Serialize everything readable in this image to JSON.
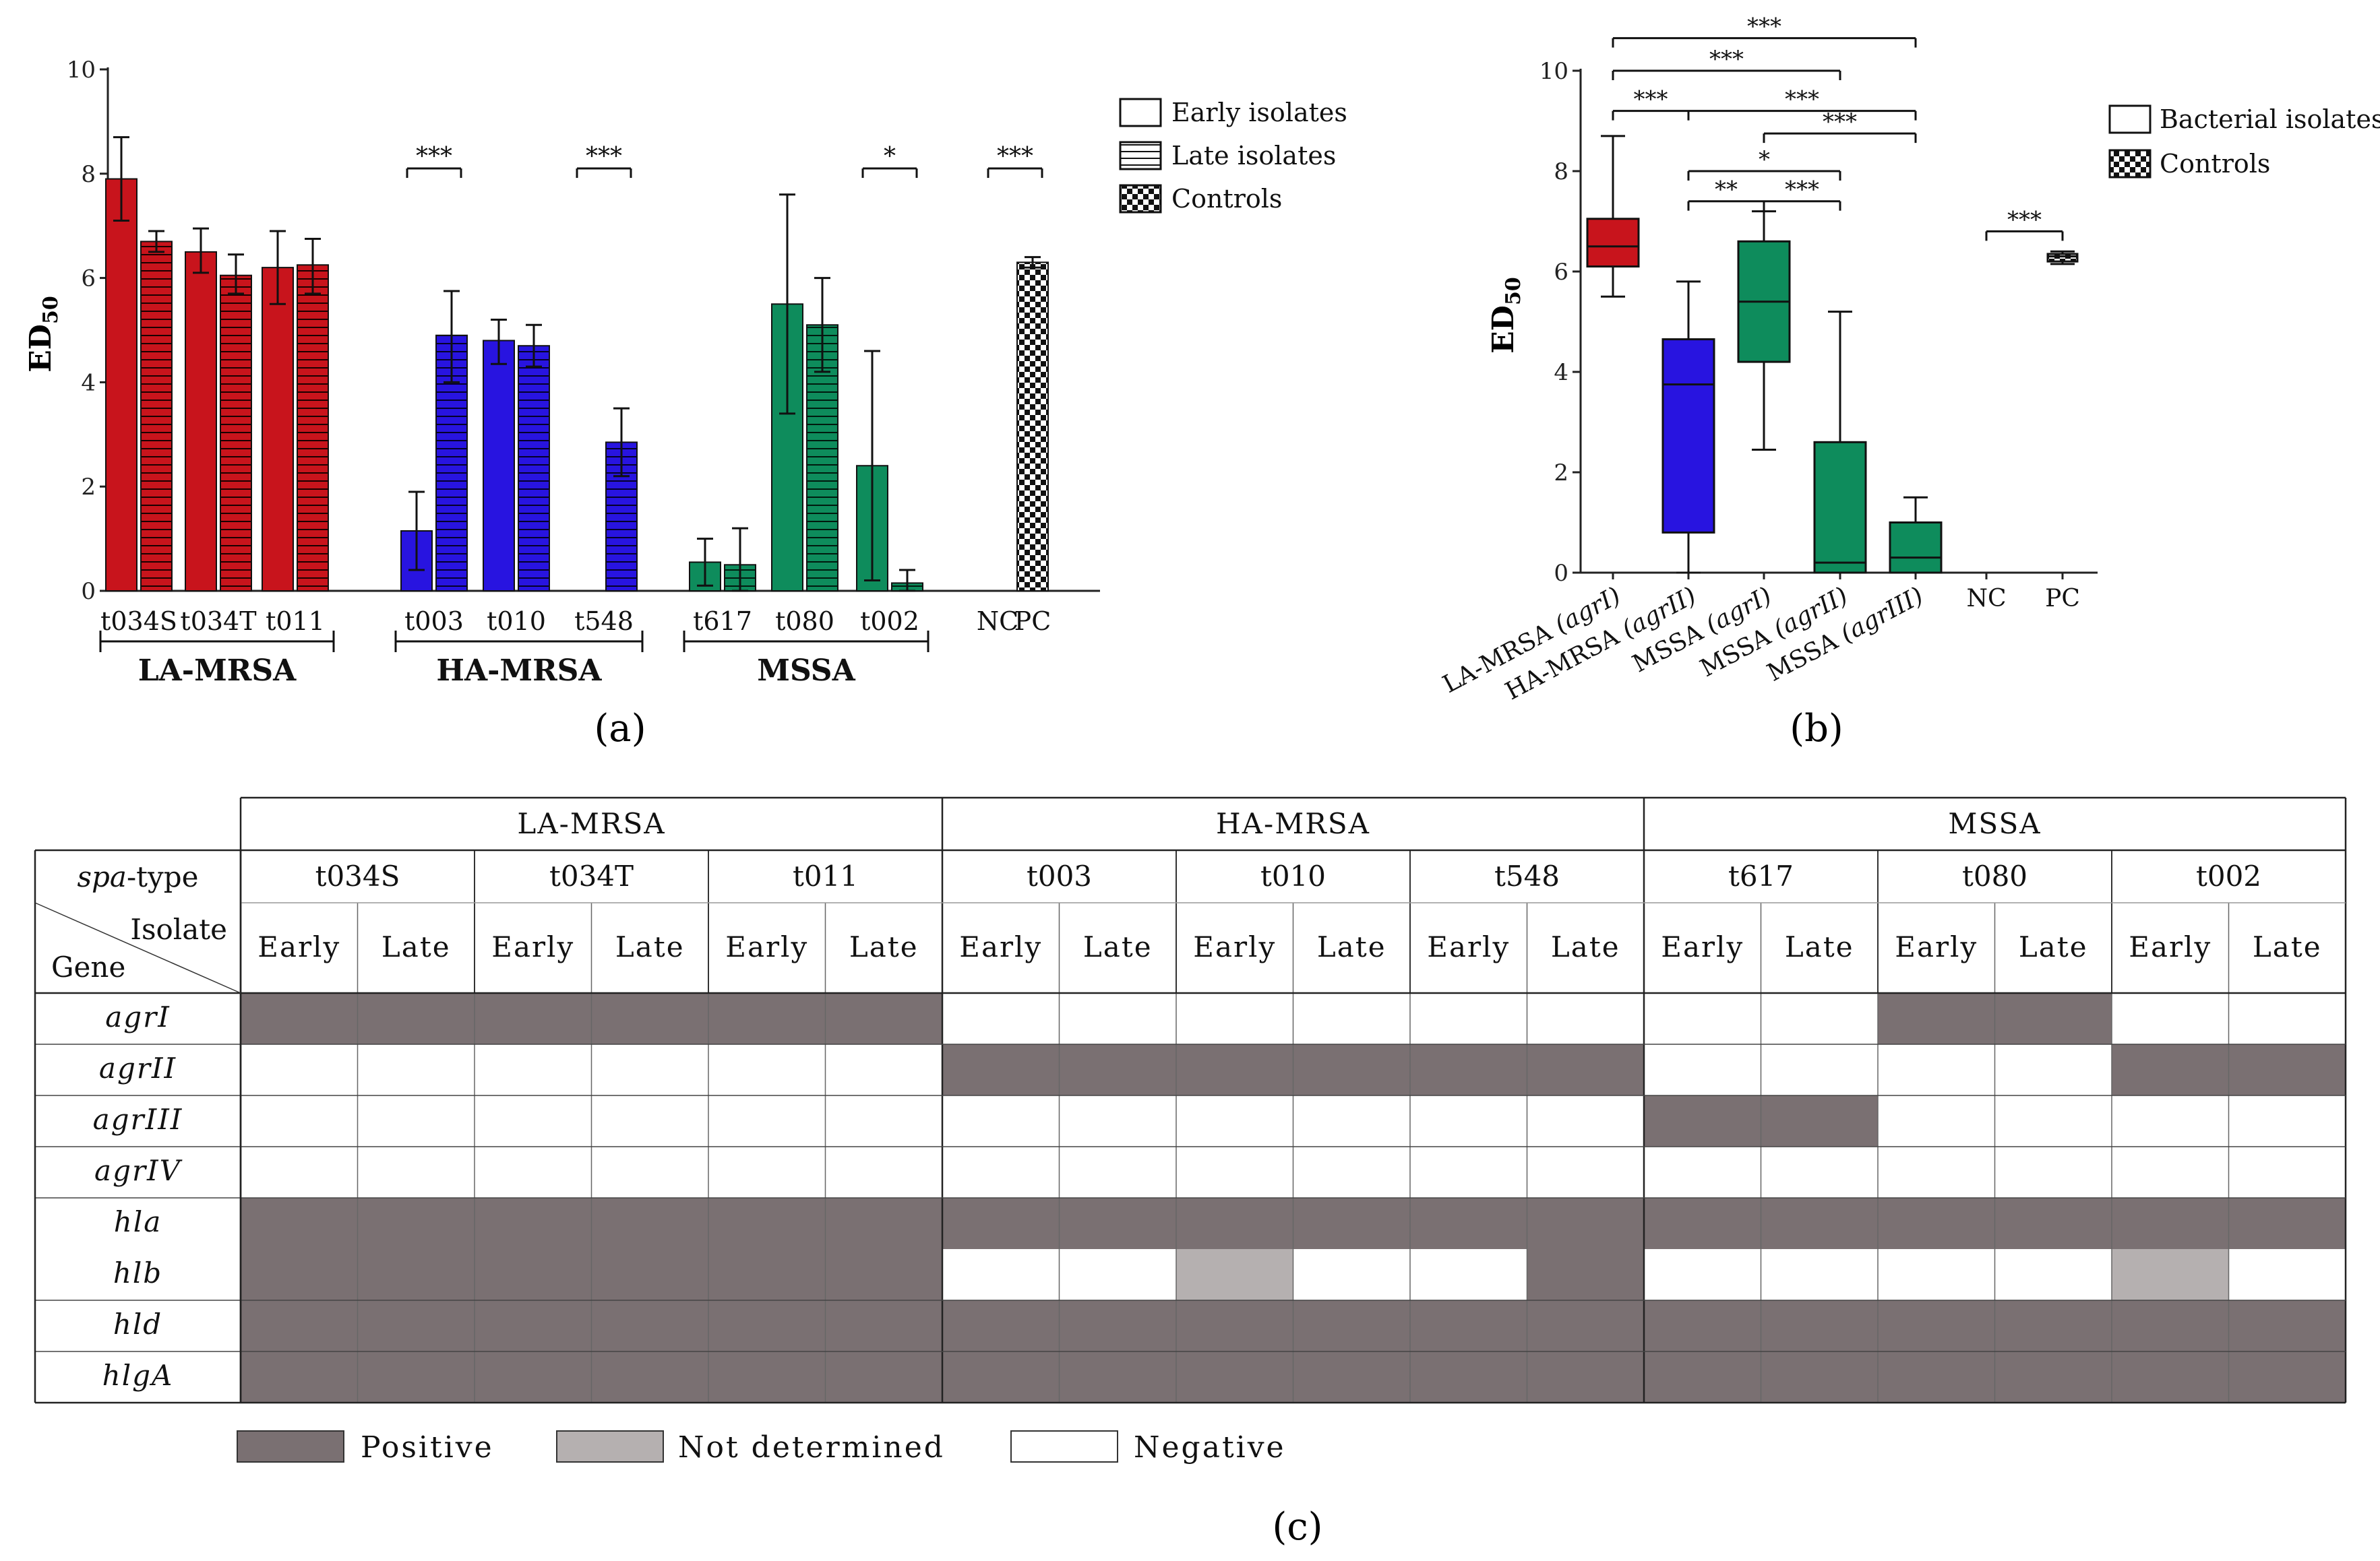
{
  "panels": {
    "a": "(a)",
    "b": "(b)",
    "c": "(c)"
  },
  "colors": {
    "la": "#c8141c",
    "ha": "#2814e0",
    "mssa": "#0e8c5c",
    "positive": "#7a7072",
    "not_determined": "#b5b0b0",
    "negative": "#ffffff"
  },
  "chart_data": [
    {
      "type": "bar",
      "panel": "(a)",
      "ylabel": "ED",
      "ylabel_sub": "50",
      "ylim": [
        0,
        10
      ],
      "yticks": [
        0,
        2,
        4,
        6,
        8,
        10
      ],
      "legend": [
        "Early isolates",
        "Late isolates",
        "Controls"
      ],
      "group_labels": [
        "LA-MRSA",
        "HA-MRSA",
        "MSSA"
      ],
      "bars": [
        {
          "group": "LA-MRSA",
          "spa": "t034S",
          "stage": "Early",
          "value": 7.9,
          "err_low": 7.1,
          "err_high": 8.7
        },
        {
          "group": "LA-MRSA",
          "spa": "t034S",
          "stage": "Late",
          "value": 6.7,
          "err_low": 6.5,
          "err_high": 6.9
        },
        {
          "group": "LA-MRSA",
          "spa": "t034T",
          "stage": "Early",
          "value": 6.5,
          "err_low": 6.1,
          "err_high": 6.95
        },
        {
          "group": "LA-MRSA",
          "spa": "t034T",
          "stage": "Late",
          "value": 6.05,
          "err_low": 5.7,
          "err_high": 6.45
        },
        {
          "group": "LA-MRSA",
          "spa": "t011",
          "stage": "Early",
          "value": 6.2,
          "err_low": 5.5,
          "err_high": 6.9
        },
        {
          "group": "LA-MRSA",
          "spa": "t011",
          "stage": "Late",
          "value": 6.25,
          "err_low": 5.7,
          "err_high": 6.75
        },
        {
          "group": "HA-MRSA",
          "spa": "t003",
          "stage": "Early",
          "value": 1.15,
          "err_low": 0.4,
          "err_high": 1.9
        },
        {
          "group": "HA-MRSA",
          "spa": "t003",
          "stage": "Late",
          "value": 4.9,
          "err_low": 4.0,
          "err_high": 5.75
        },
        {
          "group": "HA-MRSA",
          "spa": "t010",
          "stage": "Early",
          "value": 4.8,
          "err_low": 4.35,
          "err_high": 5.2
        },
        {
          "group": "HA-MRSA",
          "spa": "t010",
          "stage": "Late",
          "value": 4.7,
          "err_low": 4.3,
          "err_high": 5.1
        },
        {
          "group": "HA-MRSA",
          "spa": "t548",
          "stage": "Early",
          "value": 0.0,
          "err_low": 0.0,
          "err_high": 0.0
        },
        {
          "group": "HA-MRSA",
          "spa": "t548",
          "stage": "Late",
          "value": 2.85,
          "err_low": 2.2,
          "err_high": 3.5
        },
        {
          "group": "MSSA",
          "spa": "t617",
          "stage": "Early",
          "value": 0.55,
          "err_low": 0.1,
          "err_high": 1.0
        },
        {
          "group": "MSSA",
          "spa": "t617",
          "stage": "Late",
          "value": 0.5,
          "err_low": 0.0,
          "err_high": 1.2
        },
        {
          "group": "MSSA",
          "spa": "t080",
          "stage": "Early",
          "value": 5.5,
          "err_low": 3.4,
          "err_high": 7.6
        },
        {
          "group": "MSSA",
          "spa": "t080",
          "stage": "Late",
          "value": 5.1,
          "err_low": 4.2,
          "err_high": 6.0
        },
        {
          "group": "MSSA",
          "spa": "t002",
          "stage": "Early",
          "value": 2.4,
          "err_low": 0.2,
          "err_high": 4.6
        },
        {
          "group": "MSSA",
          "spa": "t002",
          "stage": "Late",
          "value": 0.15,
          "err_low": 0.0,
          "err_high": 0.4
        },
        {
          "group": "Controls",
          "spa": "NC",
          "stage": "Control",
          "value": 0.0,
          "err_low": 0.0,
          "err_high": 0.0
        },
        {
          "group": "Controls",
          "spa": "PC",
          "stage": "Control",
          "value": 6.3,
          "err_low": 6.2,
          "err_high": 6.4
        }
      ],
      "tick_labels": [
        {
          "label": "t034S",
          "pair": 0
        },
        {
          "label": "t034T",
          "pair": 1
        },
        {
          "label": "t011",
          "pair": 2
        },
        {
          "label": "t003",
          "pair": 3
        },
        {
          "label": "t010",
          "pair": 4
        },
        {
          "label": "t548",
          "pair": 5
        },
        {
          "label": "t617",
          "pair": 6
        },
        {
          "label": "t080",
          "pair": 7
        },
        {
          "label": "t002",
          "pair": 8
        },
        {
          "label": "NC",
          "bar": 18
        },
        {
          "label": "PC",
          "bar": 19
        }
      ],
      "significance": [
        {
          "label": "***",
          "from_bar": 6,
          "to_bar": 7
        },
        {
          "label": "***",
          "from_bar": 10,
          "to_bar": 11
        },
        {
          "label": "*",
          "from_bar": 16,
          "to_bar": 17
        },
        {
          "label": "***",
          "from_bar": 18,
          "to_bar": 19
        }
      ]
    },
    {
      "type": "box",
      "panel": "(b)",
      "ylabel": "ED",
      "ylabel_sub": "50",
      "ylim": [
        0,
        10
      ],
      "yticks": [
        0,
        2,
        4,
        6,
        8,
        10
      ],
      "legend": [
        "Bacterial isolates",
        "Controls"
      ],
      "categories": [
        {
          "name": "LA-MRSA",
          "agr": "(agrI)",
          "min": 5.5,
          "q1": 6.1,
          "median": 6.5,
          "q3": 7.05,
          "max": 8.7
        },
        {
          "name": "HA-MRSA",
          "agr": "(agrII)",
          "min": 0.0,
          "q1": 0.8,
          "median": 3.75,
          "q3": 4.65,
          "max": 5.8
        },
        {
          "name": "MSSA",
          "agr": "(agrI)",
          "min": 2.45,
          "q1": 4.2,
          "median": 5.4,
          "q3": 6.6,
          "max": 7.2
        },
        {
          "name": "MSSA",
          "agr": "(agrII)",
          "min": 0.0,
          "q1": 0.0,
          "median": 0.2,
          "q3": 2.6,
          "max": 5.2
        },
        {
          "name": "MSSA",
          "agr": "(agrIII)",
          "min": 0.0,
          "q1": 0.0,
          "median": 0.3,
          "q3": 1.0,
          "max": 1.5
        },
        {
          "name": "NC",
          "agr": "",
          "min": 0,
          "q1": 0,
          "median": 0,
          "q3": 0,
          "max": 0
        },
        {
          "name": "PC",
          "agr": "",
          "min": 6.15,
          "q1": 6.2,
          "median": 6.3,
          "q3": 6.35,
          "max": 6.4
        }
      ],
      "significance": [
        {
          "label": "***",
          "from": 0,
          "to": 4,
          "level": 10.65
        },
        {
          "label": "***",
          "from": 0,
          "to": 3,
          "level": 10.0
        },
        {
          "label": "***",
          "from": 0,
          "to": 1,
          "level": 9.2
        },
        {
          "label": "***",
          "from": 1,
          "to": 4,
          "level": 9.2
        },
        {
          "label": "***",
          "from": 2,
          "to": 4,
          "level": 8.75
        },
        {
          "label": "*",
          "from": 1,
          "to": 3,
          "level": 8.0
        },
        {
          "label": "**",
          "from": 1,
          "to": 2,
          "level": 7.4
        },
        {
          "label": "***",
          "from": 2,
          "to": 3,
          "level": 7.4
        },
        {
          "label": "***",
          "from": 5,
          "to": 6,
          "level": 6.8
        }
      ]
    },
    {
      "type": "table",
      "panel": "(c)",
      "groups": [
        "LA-MRSA",
        "HA-MRSA",
        "MSSA"
      ],
      "spa_header": "spa",
      "spa_header_suffix": "-type",
      "corner_top": "Isolate",
      "corner_bottom": "Gene",
      "spa_types": [
        "t034S",
        "t034T",
        "t011",
        "t003",
        "t010",
        "t548",
        "t617",
        "t080",
        "t002"
      ],
      "stages": [
        "Early",
        "Late"
      ],
      "genes": [
        "agrI",
        "agrII",
        "agrIII",
        "agrIV",
        "hla",
        "hlb",
        "hld",
        "hlgA"
      ],
      "matrix": [
        [
          "P",
          "P",
          "P",
          "P",
          "P",
          "P",
          "N",
          "N",
          "N",
          "N",
          "N",
          "N",
          "N",
          "N",
          "P",
          "P",
          "N",
          "N"
        ],
        [
          "N",
          "N",
          "N",
          "N",
          "N",
          "N",
          "P",
          "P",
          "P",
          "P",
          "P",
          "P",
          "N",
          "N",
          "N",
          "N",
          "P",
          "P"
        ],
        [
          "N",
          "N",
          "N",
          "N",
          "N",
          "N",
          "N",
          "N",
          "N",
          "N",
          "N",
          "N",
          "P",
          "P",
          "N",
          "N",
          "N",
          "N"
        ],
        [
          "N",
          "N",
          "N",
          "N",
          "N",
          "N",
          "N",
          "N",
          "N",
          "N",
          "N",
          "N",
          "N",
          "N",
          "N",
          "N",
          "N",
          "N"
        ],
        [
          "P",
          "P",
          "P",
          "P",
          "P",
          "P",
          "P",
          "P",
          "P",
          "P",
          "P",
          "P",
          "P",
          "P",
          "P",
          "P",
          "P",
          "P"
        ],
        [
          "P",
          "P",
          "P",
          "P",
          "P",
          "P",
          "N",
          "N",
          "D",
          "N",
          "N",
          "P",
          "N",
          "N",
          "N",
          "N",
          "D",
          "N"
        ],
        [
          "P",
          "P",
          "P",
          "P",
          "P",
          "P",
          "P",
          "P",
          "P",
          "P",
          "P",
          "P",
          "P",
          "P",
          "P",
          "P",
          "P",
          "P"
        ],
        [
          "P",
          "P",
          "P",
          "P",
          "P",
          "P",
          "P",
          "P",
          "P",
          "P",
          "P",
          "P",
          "P",
          "P",
          "P",
          "P",
          "P",
          "P"
        ]
      ],
      "legend": {
        "positive": "Positive",
        "not_determined": "Not determined",
        "negative": "Negative"
      }
    }
  ]
}
